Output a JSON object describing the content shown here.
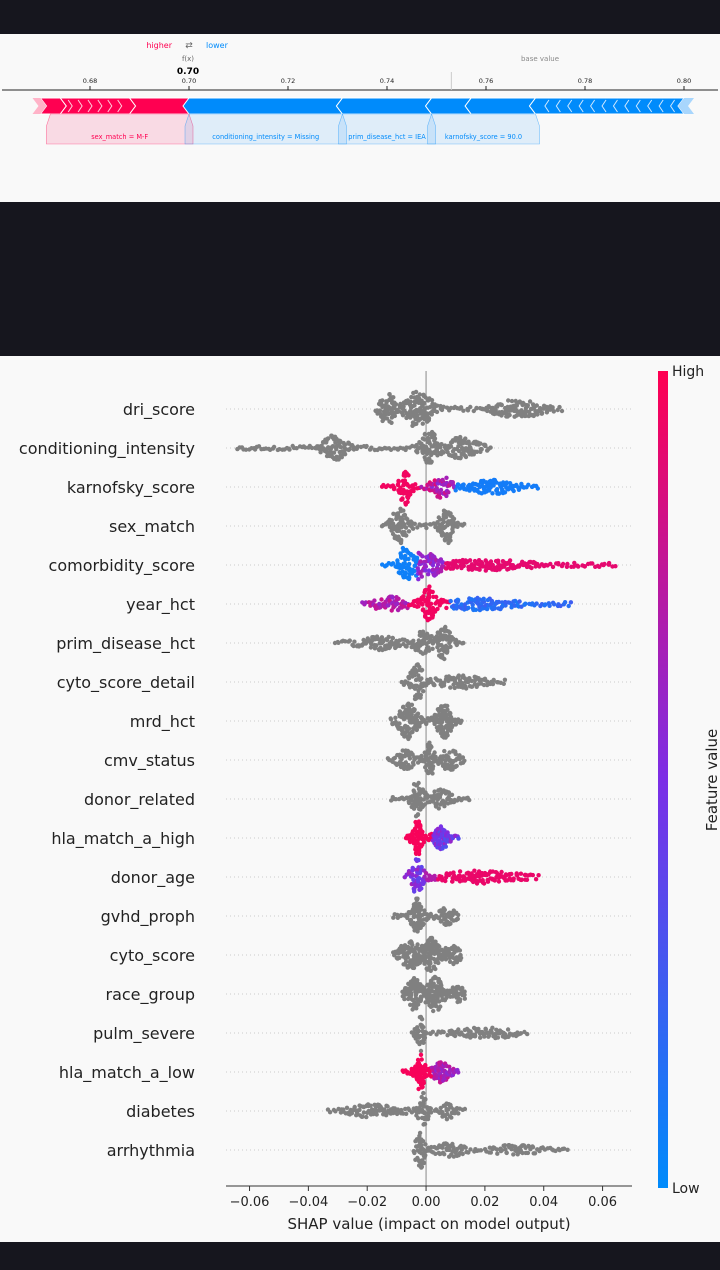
{
  "chart_data": [
    {
      "type": "force_plot",
      "legend": {
        "higher": "higher",
        "arrow": "⇄",
        "lower": "lower"
      },
      "fx_label": "f(x)",
      "fx_value": 0.7,
      "fx_value_text": "0.70",
      "base_label": "base value",
      "base_value": 0.753,
      "xlim": [
        0.665,
        0.805
      ],
      "ticks": [
        "0.68",
        "0.70",
        "0.72",
        "0.74",
        "0.76",
        "0.78",
        "0.80"
      ],
      "higher_segments": [
        {
          "from": 0.67,
          "to": 0.674
        },
        {
          "from": 0.674,
          "to": 0.688
        },
        {
          "from": 0.688,
          "to": 0.7
        }
      ],
      "lower_segments": [
        {
          "from": 0.7,
          "to": 0.731
        },
        {
          "from": 0.731,
          "to": 0.749
        },
        {
          "from": 0.749,
          "to": 0.757
        },
        {
          "from": 0.757,
          "to": 0.77
        },
        {
          "from": 0.77,
          "to": 0.8
        }
      ],
      "labels": [
        {
          "text": "sex_match = M-F",
          "from": 0.672,
          "to": 0.7,
          "color": "#ff0051"
        },
        {
          "text": "conditioning_intensity = Missing",
          "from": 0.7,
          "to": 0.731,
          "color": "#008bfb"
        },
        {
          "text": "prim_disease_hct = IEA",
          "from": 0.731,
          "to": 0.749,
          "color": "#008bfb"
        },
        {
          "text": "karnofsky_score = 90.0",
          "from": 0.749,
          "to": 0.77,
          "color": "#008bfb"
        }
      ],
      "colors": {
        "higher": "#ff0051",
        "lower": "#008bfb"
      }
    },
    {
      "type": "scatter",
      "subtype": "shap_beeswarm",
      "xlabel": "SHAP value (impact on model output)",
      "xlim": [
        -0.068,
        0.07
      ],
      "xticks": [
        "−0.06",
        "−0.04",
        "−0.02",
        "0.00",
        "0.02",
        "0.04",
        "0.06"
      ],
      "xtick_values": [
        -0.06,
        -0.04,
        -0.02,
        0.0,
        0.02,
        0.04,
        0.06
      ],
      "colorbar": {
        "label": "Feature value",
        "high": "High",
        "low": "Low",
        "high_color": "#ff0051",
        "low_color": "#008bfb"
      },
      "neutral_color": "#808080",
      "features": [
        {
          "name": "dri_score",
          "colored": false,
          "bumps": [
            [
              -0.013,
              0.0025,
              1.0
            ],
            [
              -0.0045,
              0.002,
              0.9
            ],
            [
              -0.0005,
              0.0025,
              0.8
            ],
            [
              0.031,
              0.006,
              0.55
            ]
          ],
          "range": [
            -0.017,
            0.046
          ]
        },
        {
          "name": "conditioning_intensity",
          "colored": false,
          "bumps": [
            [
              -0.031,
              0.003,
              0.7
            ],
            [
              0.001,
              0.002,
              1.0
            ],
            [
              0.012,
              0.004,
              0.6
            ]
          ],
          "range": [
            -0.064,
            0.022
          ]
        },
        {
          "name": "karnofsky_score",
          "colored": true,
          "bumps": [
            [
              -0.007,
              0.0015,
              1.0
            ],
            [
              0.005,
              0.0025,
              0.55
            ],
            [
              0.022,
              0.006,
              0.35
            ]
          ],
          "range": [
            -0.015,
            0.038
          ]
        },
        {
          "name": "sex_match",
          "colored": false,
          "bumps": [
            [
              -0.009,
              0.002,
              1.0
            ],
            [
              0.007,
              0.0018,
              1.0
            ]
          ],
          "range": [
            -0.015,
            0.013
          ]
        },
        {
          "name": "comorbidity_score",
          "colored": true,
          "bumps": [
            [
              -0.007,
              0.0015,
              1.0
            ],
            [
              -0.0025,
              0.0012,
              0.7
            ],
            [
              0.002,
              0.002,
              0.5
            ],
            [
              0.018,
              0.012,
              0.25
            ]
          ],
          "range": [
            -0.015,
            0.064
          ]
        },
        {
          "name": "year_hct",
          "colored": true,
          "bumps": [
            [
              -0.012,
              0.004,
              0.35
            ],
            [
              0.001,
              0.0018,
              1.0
            ],
            [
              0.018,
              0.008,
              0.3
            ]
          ],
          "range": [
            -0.022,
            0.049
          ]
        },
        {
          "name": "prim_disease_hct",
          "colored": false,
          "bumps": [
            [
              -0.015,
              0.005,
              0.35
            ],
            [
              -0.001,
              0.002,
              0.65
            ],
            [
              0.006,
              0.0018,
              1.0
            ]
          ],
          "range": [
            -0.031,
            0.013
          ]
        },
        {
          "name": "cyto_score_detail",
          "colored": false,
          "bumps": [
            [
              -0.003,
              0.0018,
              1.0
            ],
            [
              0.012,
              0.006,
              0.3
            ]
          ],
          "range": [
            -0.008,
            0.027
          ]
        },
        {
          "name": "mrd_hct",
          "colored": false,
          "bumps": [
            [
              -0.006,
              0.0025,
              1.0
            ],
            [
              0.006,
              0.002,
              1.0
            ]
          ],
          "range": [
            -0.012,
            0.012
          ]
        },
        {
          "name": "cmv_status",
          "colored": false,
          "bumps": [
            [
              -0.007,
              0.002,
              0.55
            ],
            [
              0.001,
              0.0012,
              1.0
            ],
            [
              0.008,
              0.002,
              0.6
            ]
          ],
          "range": [
            -0.013,
            0.013
          ]
        },
        {
          "name": "donor_related",
          "colored": false,
          "bumps": [
            [
              -0.003,
              0.0015,
              1.0
            ],
            [
              0.005,
              0.0025,
              0.5
            ]
          ],
          "range": [
            -0.012,
            0.015
          ]
        },
        {
          "name": "hla_match_a_high",
          "colored": true,
          "bumps": [
            [
              -0.003,
              0.0012,
              1.0
            ],
            [
              0.005,
              0.0018,
              0.6
            ]
          ],
          "range": [
            -0.007,
            0.011
          ]
        },
        {
          "name": "donor_age",
          "colored": true,
          "bumps": [
            [
              -0.003,
              0.0015,
              1.0
            ],
            [
              0.018,
              0.009,
              0.3
            ]
          ],
          "range": [
            -0.007,
            0.038
          ]
        },
        {
          "name": "gvhd_proph",
          "colored": false,
          "bumps": [
            [
              -0.003,
              0.0015,
              1.0
            ],
            [
              0.007,
              0.002,
              0.45
            ]
          ],
          "range": [
            -0.011,
            0.011
          ]
        },
        {
          "name": "cyto_score",
          "colored": false,
          "bumps": [
            [
              -0.005,
              0.003,
              0.8
            ],
            [
              0.002,
              0.002,
              1.0
            ],
            [
              0.009,
              0.002,
              0.5
            ]
          ],
          "range": [
            -0.011,
            0.012
          ]
        },
        {
          "name": "race_group",
          "colored": false,
          "bumps": [
            [
              -0.004,
              0.002,
              0.9
            ],
            [
              0.003,
              0.002,
              1.0
            ],
            [
              0.011,
              0.002,
              0.4
            ]
          ],
          "range": [
            -0.008,
            0.013
          ]
        },
        {
          "name": "pulm_severe",
          "colored": false,
          "bumps": [
            [
              -0.002,
              0.001,
              1.0
            ],
            [
              0.02,
              0.007,
              0.25
            ]
          ],
          "range": [
            -0.005,
            0.034
          ]
        },
        {
          "name": "hla_match_a_low",
          "colored": true,
          "bumps": [
            [
              -0.002,
              0.0012,
              1.0
            ],
            [
              0.005,
              0.002,
              0.55
            ]
          ],
          "range": [
            -0.008,
            0.011
          ]
        },
        {
          "name": "diabetes",
          "colored": false,
          "bumps": [
            [
              -0.001,
              0.0012,
              1.0
            ],
            [
              0.007,
              0.002,
              0.4
            ],
            [
              -0.018,
              0.006,
              0.3
            ]
          ],
          "range": [
            -0.033,
            0.013
          ]
        },
        {
          "name": "arrhythmia",
          "colored": false,
          "bumps": [
            [
              -0.002,
              0.0012,
              1.0
            ],
            [
              0.008,
              0.003,
              0.4
            ],
            [
              0.03,
              0.005,
              0.22
            ]
          ],
          "range": [
            -0.004,
            0.048
          ]
        }
      ]
    }
  ]
}
